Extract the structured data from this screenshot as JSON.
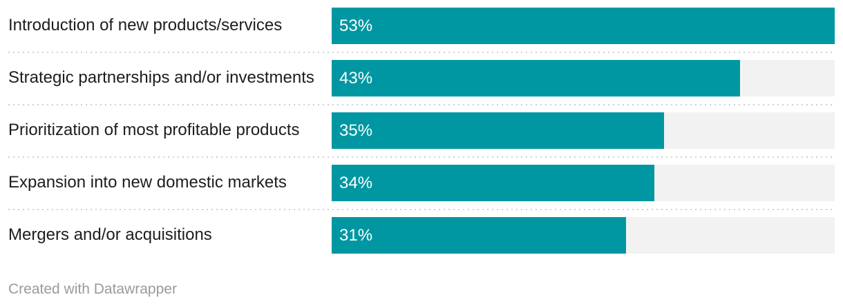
{
  "chart_data": {
    "type": "bar",
    "orientation": "horizontal",
    "categories": [
      "Introduction of new products/services",
      "Strategic partnerships and/or investments",
      "Prioritization of most profitable products",
      "Expansion into new domestic markets",
      "Mergers and/or acquisitions"
    ],
    "values": [
      53,
      43,
      35,
      34,
      31
    ],
    "bar_labels": [
      "53%",
      "43%",
      "35%",
      "34%",
      "31%"
    ],
    "xlim": [
      0,
      53
    ],
    "value_unit": "%",
    "title": "",
    "xlabel": "",
    "ylabel": "",
    "axis_visible": false,
    "grid": "dotted horizontal row separators",
    "legend": "none",
    "value_label_position": "inside-left"
  },
  "colors": {
    "bar": "#0097a2",
    "track": "#f2f2f2",
    "separator": "#d0d0d0",
    "label_text": "#1d1d1d",
    "value_text": "#ffffff",
    "attribution_text": "#9a9a9a",
    "background": "#ffffff"
  },
  "footer": {
    "attribution": "Created with Datawrapper"
  }
}
